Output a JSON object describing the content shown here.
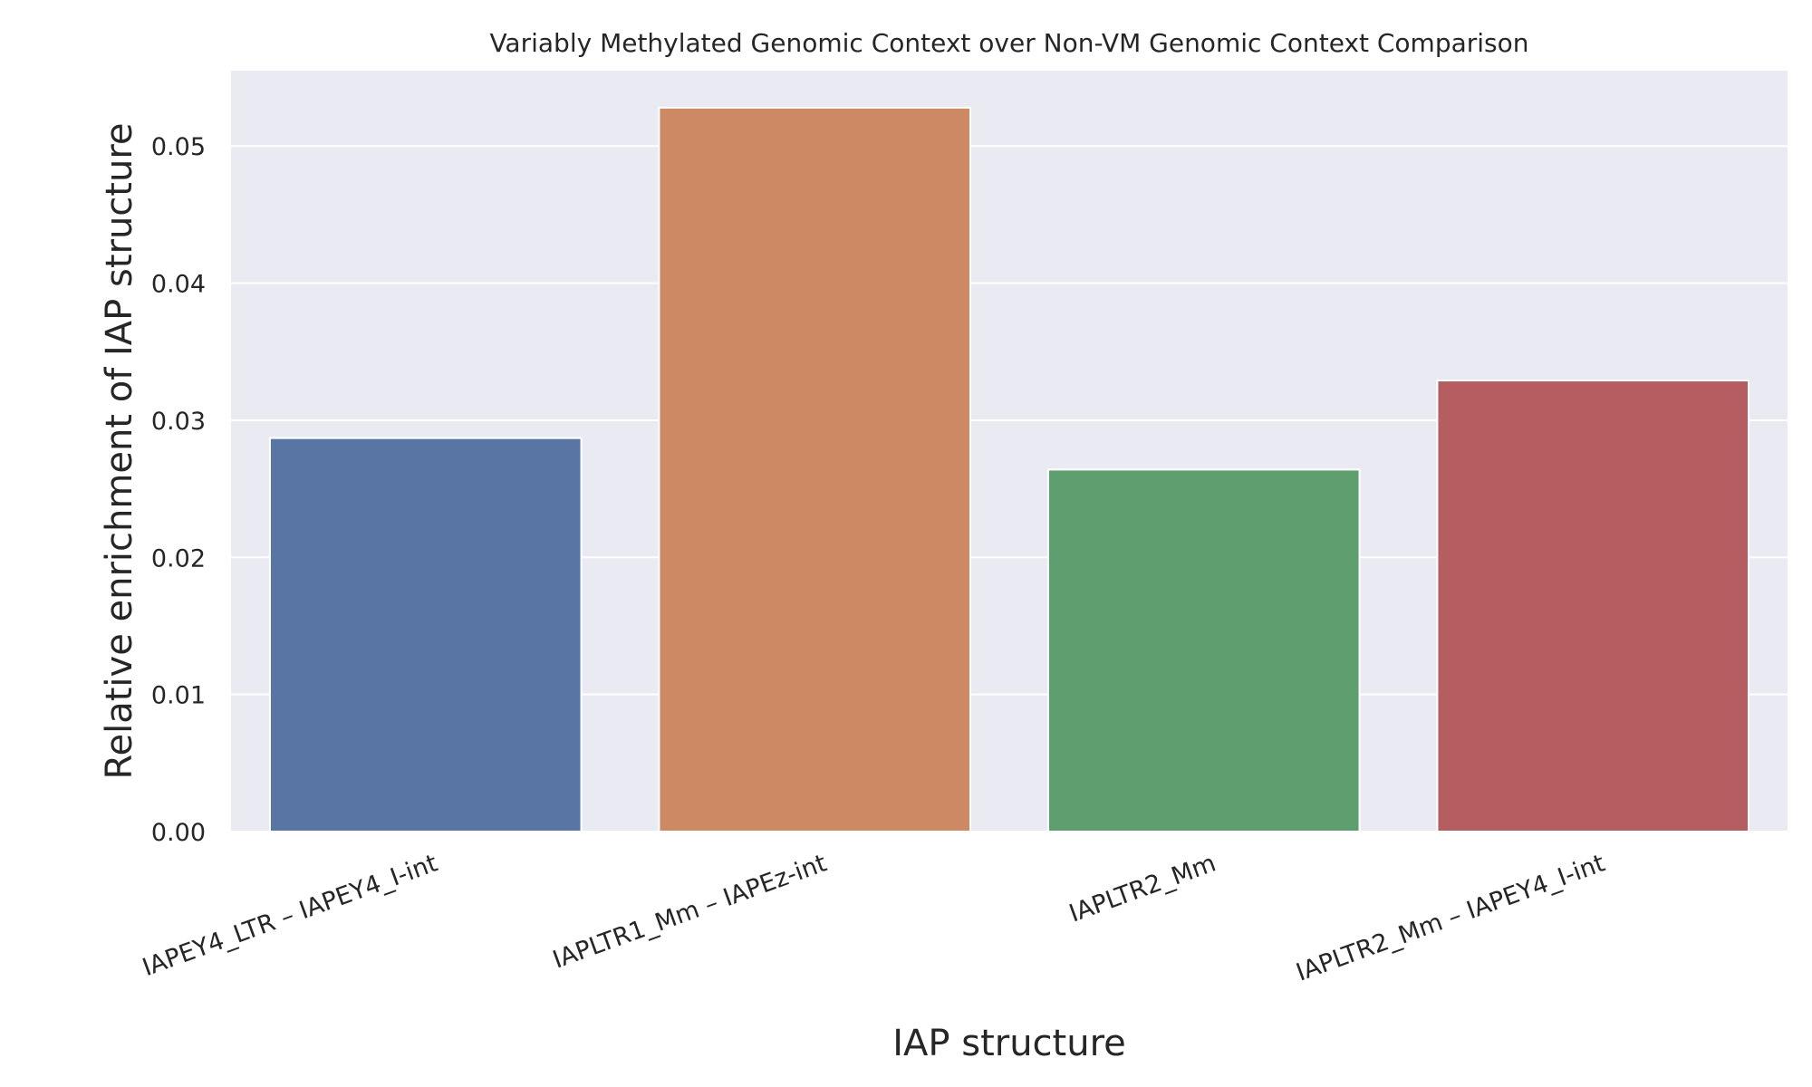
{
  "chart_data": {
    "type": "bar",
    "title": "Variably Methylated Genomic Context over Non-VM Genomic Context Comparison",
    "xlabel": "IAP structure",
    "ylabel": "Relative enrichment of IAP structure",
    "categories": [
      "IAPEY4_LTR – IAPEY4_I-int",
      "IAPLTR1_Mm – IAPEz-int",
      "IAPLTR2_Mm",
      "IAPLTR2_Mm – IAPEY4_I-int"
    ],
    "values": [
      0.0287,
      0.0528,
      0.0264,
      0.0329
    ],
    "colors": [
      "#5975a4",
      "#cc8963",
      "#5f9e6e",
      "#b55d60"
    ],
    "ylim": [
      0,
      0.0555
    ],
    "yticks": [
      0.0,
      0.01,
      0.02,
      0.03,
      0.04,
      0.05
    ],
    "ytick_labels": [
      "0.00",
      "0.01",
      "0.02",
      "0.03",
      "0.04",
      "0.05"
    ],
    "grid": true,
    "background": "#eaeaf2",
    "grid_color": "#ffffff"
  }
}
